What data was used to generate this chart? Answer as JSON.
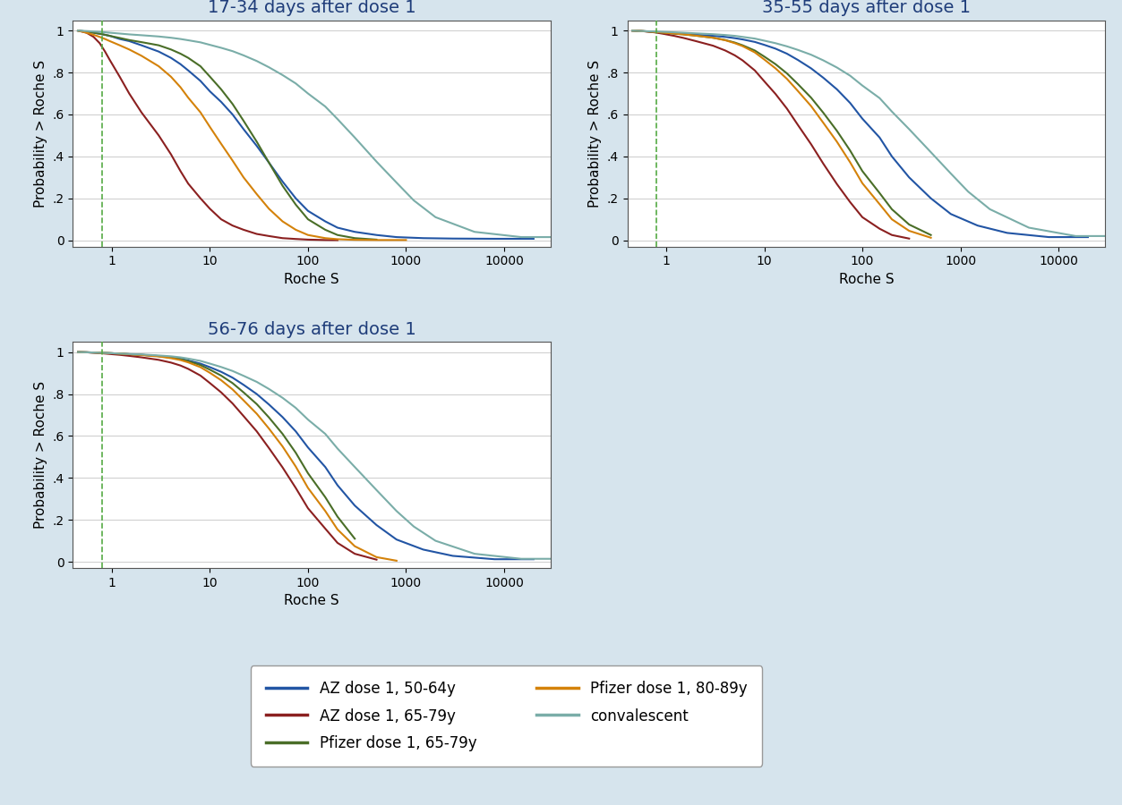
{
  "titles": [
    "17-34 days after dose 1",
    "35-55 days after dose 1",
    "56-76 days after dose 1"
  ],
  "xlabel": "Roche S",
  "ylabel": "Probability > Roche S",
  "yticks": [
    0,
    0.2,
    0.4,
    0.6,
    0.8,
    1.0
  ],
  "ytick_labels": [
    "0",
    ".2",
    ".4",
    ".6",
    ".8",
    "1"
  ],
  "vline_x": 0.8,
  "bg_color": "#d6e4ed",
  "plot_bg_color": "#ffffff",
  "title_color": "#1f3d7a",
  "title_fontsize": 14,
  "axis_label_fontsize": 11,
  "tick_fontsize": 10,
  "legend_labels": [
    "AZ dose 1, 50-64y",
    "AZ dose 1, 65-79y",
    "Pfizer dose 1, 65-79y",
    "Pfizer dose 1, 80-89y",
    "convalescent"
  ],
  "line_colors": [
    "#2255a4",
    "#8b2020",
    "#4a6e28",
    "#d4820a",
    "#7aada8"
  ],
  "line_widths": [
    1.5,
    1.5,
    1.5,
    1.5,
    1.5
  ],
  "panel_curves": {
    "panel0": {
      "AZ_50_64": {
        "x": [
          0.45,
          0.55,
          0.65,
          0.75,
          0.85,
          0.95,
          1.2,
          1.5,
          2,
          3,
          4,
          5,
          6,
          8,
          10,
          13,
          17,
          22,
          30,
          40,
          55,
          75,
          100,
          150,
          200,
          300,
          500,
          800,
          1500,
          3000,
          8000,
          20000
        ],
        "y": [
          1,
          0.995,
          0.99,
          0.985,
          0.98,
          0.975,
          0.96,
          0.95,
          0.93,
          0.9,
          0.87,
          0.84,
          0.81,
          0.76,
          0.71,
          0.66,
          0.6,
          0.53,
          0.45,
          0.37,
          0.28,
          0.2,
          0.14,
          0.09,
          0.06,
          0.04,
          0.025,
          0.015,
          0.01,
          0.008,
          0.007,
          0.007
        ]
      },
      "AZ_65_79": {
        "x": [
          0.45,
          0.55,
          0.65,
          0.75,
          0.85,
          0.95,
          1.2,
          1.5,
          2,
          3,
          4,
          5,
          6,
          8,
          10,
          13,
          17,
          22,
          30,
          40,
          55,
          75,
          100,
          150,
          200
        ],
        "y": [
          1,
          0.99,
          0.97,
          0.94,
          0.9,
          0.86,
          0.78,
          0.7,
          0.61,
          0.5,
          0.41,
          0.33,
          0.27,
          0.2,
          0.15,
          0.1,
          0.07,
          0.05,
          0.03,
          0.02,
          0.01,
          0.006,
          0.003,
          0.001,
          0.0005
        ]
      },
      "Pfizer_65_79": {
        "x": [
          0.45,
          0.55,
          0.65,
          0.75,
          0.85,
          0.95,
          1.2,
          1.5,
          2,
          3,
          4,
          5,
          6,
          8,
          10,
          13,
          17,
          22,
          30,
          40,
          55,
          75,
          100,
          150,
          200,
          300,
          500
        ],
        "y": [
          1,
          0.995,
          0.99,
          0.985,
          0.98,
          0.975,
          0.965,
          0.955,
          0.945,
          0.93,
          0.91,
          0.89,
          0.87,
          0.83,
          0.78,
          0.72,
          0.65,
          0.57,
          0.47,
          0.37,
          0.26,
          0.17,
          0.1,
          0.05,
          0.025,
          0.01,
          0.003
        ]
      },
      "Pfizer_80_89": {
        "x": [
          0.45,
          0.55,
          0.65,
          0.75,
          0.85,
          0.95,
          1.2,
          1.5,
          2,
          3,
          4,
          5,
          6,
          8,
          10,
          13,
          17,
          22,
          30,
          40,
          55,
          75,
          100,
          150,
          200,
          300,
          500,
          1000
        ],
        "y": [
          1,
          0.99,
          0.98,
          0.97,
          0.96,
          0.95,
          0.93,
          0.91,
          0.88,
          0.83,
          0.78,
          0.73,
          0.68,
          0.61,
          0.54,
          0.46,
          0.38,
          0.3,
          0.22,
          0.15,
          0.09,
          0.05,
          0.025,
          0.01,
          0.005,
          0.002,
          0.001,
          0.001
        ]
      },
      "convalescent": {
        "x": [
          0.45,
          0.55,
          0.65,
          0.75,
          0.85,
          0.95,
          1.2,
          1.5,
          2,
          3,
          4,
          5,
          6,
          8,
          10,
          13,
          17,
          22,
          30,
          40,
          55,
          75,
          100,
          150,
          200,
          300,
          500,
          800,
          1200,
          2000,
          5000,
          15000,
          30000
        ],
        "y": [
          1,
          0.998,
          0.996,
          0.994,
          0.992,
          0.99,
          0.986,
          0.982,
          0.978,
          0.972,
          0.966,
          0.96,
          0.954,
          0.944,
          0.932,
          0.918,
          0.902,
          0.882,
          0.855,
          0.825,
          0.788,
          0.748,
          0.7,
          0.638,
          0.578,
          0.49,
          0.375,
          0.275,
          0.19,
          0.11,
          0.04,
          0.015,
          0.015
        ]
      }
    },
    "panel1": {
      "AZ_50_64": {
        "x": [
          0.45,
          0.55,
          0.65,
          0.75,
          0.85,
          0.95,
          1.2,
          1.5,
          2,
          3,
          4,
          5,
          6,
          8,
          10,
          13,
          17,
          22,
          30,
          40,
          55,
          75,
          100,
          150,
          200,
          300,
          500,
          800,
          1500,
          3000,
          8000,
          20000
        ],
        "y": [
          1,
          0.998,
          0.996,
          0.994,
          0.992,
          0.99,
          0.987,
          0.984,
          0.98,
          0.975,
          0.97,
          0.964,
          0.958,
          0.946,
          0.932,
          0.914,
          0.89,
          0.86,
          0.82,
          0.775,
          0.72,
          0.655,
          0.58,
          0.49,
          0.4,
          0.3,
          0.2,
          0.125,
          0.07,
          0.035,
          0.015,
          0.015
        ]
      },
      "AZ_65_79": {
        "x": [
          0.45,
          0.55,
          0.65,
          0.75,
          0.85,
          0.95,
          1.2,
          1.5,
          2,
          3,
          4,
          5,
          6,
          8,
          10,
          13,
          17,
          22,
          30,
          40,
          55,
          75,
          100,
          150,
          200,
          300
        ],
        "y": [
          1,
          0.998,
          0.995,
          0.992,
          0.988,
          0.984,
          0.975,
          0.965,
          0.95,
          0.928,
          0.905,
          0.882,
          0.858,
          0.81,
          0.758,
          0.698,
          0.628,
          0.55,
          0.458,
          0.365,
          0.268,
          0.182,
          0.11,
          0.055,
          0.025,
          0.008
        ]
      },
      "Pfizer_65_79": {
        "x": [
          0.45,
          0.55,
          0.65,
          0.75,
          0.85,
          0.95,
          1.2,
          1.5,
          2,
          3,
          4,
          5,
          6,
          8,
          10,
          13,
          17,
          22,
          30,
          40,
          55,
          75,
          100,
          150,
          200,
          300,
          500
        ],
        "y": [
          1,
          0.998,
          0.996,
          0.994,
          0.992,
          0.99,
          0.986,
          0.982,
          0.976,
          0.966,
          0.955,
          0.943,
          0.93,
          0.905,
          0.876,
          0.84,
          0.796,
          0.745,
          0.68,
          0.608,
          0.522,
          0.428,
          0.33,
          0.225,
          0.148,
          0.075,
          0.025
        ]
      },
      "Pfizer_80_89": {
        "x": [
          0.45,
          0.55,
          0.65,
          0.75,
          0.85,
          0.95,
          1.2,
          1.5,
          2,
          3,
          4,
          5,
          6,
          8,
          10,
          13,
          17,
          22,
          30,
          40,
          55,
          75,
          100,
          150,
          200,
          300,
          500
        ],
        "y": [
          1,
          0.998,
          0.996,
          0.994,
          0.992,
          0.99,
          0.986,
          0.982,
          0.976,
          0.966,
          0.954,
          0.94,
          0.926,
          0.896,
          0.862,
          0.82,
          0.77,
          0.712,
          0.64,
          0.56,
          0.47,
          0.372,
          0.272,
          0.172,
          0.1,
          0.045,
          0.012
        ]
      },
      "convalescent": {
        "x": [
          0.45,
          0.55,
          0.65,
          0.75,
          0.85,
          0.95,
          1.2,
          1.5,
          2,
          3,
          4,
          5,
          6,
          8,
          10,
          13,
          17,
          22,
          30,
          40,
          55,
          75,
          100,
          150,
          200,
          300,
          500,
          800,
          1200,
          2000,
          5000,
          15000,
          30000
        ],
        "y": [
          1,
          0.998,
          0.997,
          0.996,
          0.995,
          0.994,
          0.992,
          0.99,
          0.987,
          0.983,
          0.979,
          0.975,
          0.97,
          0.962,
          0.952,
          0.94,
          0.925,
          0.908,
          0.885,
          0.858,
          0.824,
          0.785,
          0.738,
          0.678,
          0.614,
          0.53,
          0.42,
          0.318,
          0.232,
          0.148,
          0.06,
          0.02,
          0.02
        ]
      }
    },
    "panel2": {
      "AZ_50_64": {
        "x": [
          0.45,
          0.55,
          0.65,
          0.75,
          0.85,
          0.95,
          1.2,
          1.5,
          2,
          3,
          4,
          5,
          6,
          8,
          10,
          13,
          17,
          22,
          30,
          40,
          55,
          75,
          100,
          150,
          200,
          300,
          500,
          800,
          1500,
          3000,
          8000,
          20000
        ],
        "y": [
          1,
          0.999,
          0.998,
          0.997,
          0.996,
          0.995,
          0.993,
          0.99,
          0.987,
          0.981,
          0.975,
          0.968,
          0.96,
          0.945,
          0.928,
          0.906,
          0.878,
          0.844,
          0.8,
          0.75,
          0.69,
          0.622,
          0.545,
          0.452,
          0.365,
          0.268,
          0.175,
          0.106,
          0.058,
          0.028,
          0.012,
          0.012
        ]
      },
      "AZ_65_79": {
        "x": [
          0.45,
          0.55,
          0.65,
          0.75,
          0.85,
          0.95,
          1.2,
          1.5,
          2,
          3,
          4,
          5,
          6,
          8,
          10,
          13,
          17,
          22,
          30,
          40,
          55,
          75,
          100,
          150,
          200,
          300,
          500
        ],
        "y": [
          1,
          0.999,
          0.997,
          0.995,
          0.993,
          0.991,
          0.987,
          0.982,
          0.975,
          0.963,
          0.95,
          0.936,
          0.92,
          0.888,
          0.852,
          0.808,
          0.755,
          0.695,
          0.622,
          0.542,
          0.45,
          0.352,
          0.255,
          0.158,
          0.09,
          0.038,
          0.01
        ]
      },
      "Pfizer_65_79": {
        "x": [
          0.45,
          0.55,
          0.65,
          0.75,
          0.85,
          0.95,
          1.2,
          1.5,
          2,
          3,
          4,
          5,
          6,
          8,
          10,
          13,
          17,
          22,
          30,
          40,
          55,
          75,
          100,
          150,
          200,
          300
        ],
        "y": [
          1,
          0.999,
          0.998,
          0.997,
          0.996,
          0.995,
          0.993,
          0.99,
          0.987,
          0.981,
          0.974,
          0.966,
          0.957,
          0.938,
          0.916,
          0.888,
          0.852,
          0.808,
          0.752,
          0.688,
          0.61,
          0.52,
          0.422,
          0.308,
          0.215,
          0.11
        ]
      },
      "Pfizer_80_89": {
        "x": [
          0.45,
          0.55,
          0.65,
          0.75,
          0.85,
          0.95,
          1.2,
          1.5,
          2,
          3,
          4,
          5,
          6,
          8,
          10,
          13,
          17,
          22,
          30,
          40,
          55,
          75,
          100,
          150,
          200,
          300,
          500,
          800
        ],
        "y": [
          1,
          0.999,
          0.998,
          0.997,
          0.996,
          0.995,
          0.993,
          0.99,
          0.986,
          0.979,
          0.971,
          0.962,
          0.951,
          0.928,
          0.901,
          0.866,
          0.822,
          0.77,
          0.706,
          0.635,
          0.55,
          0.454,
          0.352,
          0.242,
          0.154,
          0.074,
          0.022,
          0.005
        ]
      },
      "convalescent": {
        "x": [
          0.45,
          0.55,
          0.65,
          0.75,
          0.85,
          0.95,
          1.2,
          1.5,
          2,
          3,
          4,
          5,
          6,
          8,
          10,
          13,
          17,
          22,
          30,
          40,
          55,
          75,
          100,
          150,
          200,
          300,
          500,
          800,
          1200,
          2000,
          5000,
          15000,
          30000
        ],
        "y": [
          1,
          0.999,
          0.998,
          0.997,
          0.996,
          0.995,
          0.993,
          0.991,
          0.989,
          0.984,
          0.98,
          0.975,
          0.969,
          0.958,
          0.945,
          0.929,
          0.91,
          0.887,
          0.858,
          0.824,
          0.782,
          0.734,
          0.678,
          0.61,
          0.54,
          0.452,
          0.342,
          0.242,
          0.168,
          0.1,
          0.038,
          0.014,
          0.014
        ]
      }
    }
  }
}
